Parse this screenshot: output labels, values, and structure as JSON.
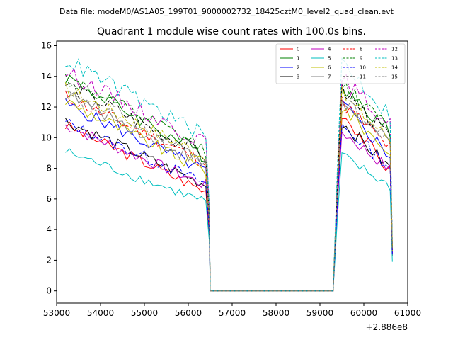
{
  "header": {
    "suptitle": "Data file: modeM0/AS1A05_199T01_9000002732_18425cztM0_level2_quad_clean.evt"
  },
  "chart_data": {
    "type": "line",
    "title": "Quadrant 1 module wise count rates with 100.0s bins.",
    "xlabel": "",
    "ylabel": "",
    "x_offset_label": "+2.886e8",
    "xlim": [
      53000,
      61000
    ],
    "ylim": [
      -0.8,
      16.3
    ],
    "xticks": [
      53000,
      54000,
      55000,
      56000,
      57000,
      58000,
      59000,
      60000,
      61000
    ],
    "xtick_labels": [
      "53000",
      "54000",
      "55000",
      "56000",
      "57000",
      "58000",
      "59000",
      "60000",
      "61000"
    ],
    "yticks": [
      0,
      2,
      4,
      6,
      8,
      10,
      12,
      14,
      16
    ],
    "ytick_labels": [
      "0",
      "2",
      "4",
      "6",
      "8",
      "10",
      "12",
      "14",
      "16"
    ],
    "legend_position": "top-right",
    "segments": {
      "gti1_x_start": 53200,
      "gti1_x_end": 56400,
      "gap_x_start": 56500,
      "gap_x_end": 59300,
      "gti2_x_start": 59400,
      "gti2_x_end": 60600
    },
    "series": [
      {
        "name": "0",
        "color": "#ff0000",
        "dash": false,
        "seg1": [
          10.8,
          6.5
        ],
        "peak": 11.7,
        "end2": 7.8,
        "last": 2.5
      },
      {
        "name": "1",
        "color": "#008000",
        "dash": false,
        "seg1": [
          14.0,
          8.8
        ],
        "peak": 13.4,
        "end2": 10.5,
        "last": 2.8
      },
      {
        "name": "2",
        "color": "#0000ff",
        "dash": false,
        "seg1": [
          12.2,
          7.8
        ],
        "peak": 12.2,
        "end2": 8.8,
        "last": 2.6
      },
      {
        "name": "3",
        "color": "#000000",
        "dash": false,
        "seg1": [
          11.1,
          6.9
        ],
        "peak": 11.0,
        "end2": 8.0,
        "last": 2.3
      },
      {
        "name": "4",
        "color": "#bf00bf",
        "dash": false,
        "seg1": [
          10.8,
          6.9
        ],
        "peak": 10.4,
        "end2": 7.9,
        "last": 2.4
      },
      {
        "name": "5",
        "color": "#00bfbf",
        "dash": false,
        "seg1": [
          9.1,
          5.8
        ],
        "peak": 8.8,
        "end2": 6.8,
        "last": 1.9
      },
      {
        "name": "6",
        "color": "#bfbf00",
        "dash": false,
        "seg1": [
          12.4,
          7.8
        ],
        "peak": 12.0,
        "end2": 9.0,
        "last": 2.6
      },
      {
        "name": "7",
        "color": "#808080",
        "dash": false,
        "seg1": [
          12.9,
          8.2
        ],
        "peak": 12.4,
        "end2": 9.6,
        "last": 2.7
      },
      {
        "name": "8",
        "color": "#ff0000",
        "dash": true,
        "seg1": [
          12.7,
          8.4
        ],
        "peak": 12.3,
        "end2": 9.3,
        "last": 2.6
      },
      {
        "name": "9",
        "color": "#008000",
        "dash": true,
        "seg1": [
          13.9,
          9.2
        ],
        "peak": 13.5,
        "end2": 10.4,
        "last": 2.9
      },
      {
        "name": "10",
        "color": "#0000ff",
        "dash": true,
        "seg1": [
          11.0,
          7.0
        ],
        "peak": 10.8,
        "end2": 8.1,
        "last": 2.3
      },
      {
        "name": "11",
        "color": "#000000",
        "dash": true,
        "seg1": [
          13.5,
          8.8
        ],
        "peak": 13.1,
        "end2": 10.0,
        "last": 2.8
      },
      {
        "name": "12",
        "color": "#bf00bf",
        "dash": true,
        "seg1": [
          14.3,
          9.6
        ],
        "peak": 13.9,
        "end2": 10.8,
        "last": 3.0
      },
      {
        "name": "13",
        "color": "#00bfbf",
        "dash": true,
        "seg1": [
          15.1,
          10.1
        ],
        "peak": 15.0,
        "end2": 11.4,
        "last": 3.2
      },
      {
        "name": "14",
        "color": "#bfbf00",
        "dash": true,
        "seg1": [
          13.2,
          8.8
        ],
        "peak": 12.8,
        "end2": 9.9,
        "last": 2.8
      },
      {
        "name": "15",
        "color": "#808080",
        "dash": true,
        "seg1": [
          12.8,
          8.5
        ],
        "peak": 12.5,
        "end2": 9.5,
        "last": 2.7
      }
    ]
  }
}
